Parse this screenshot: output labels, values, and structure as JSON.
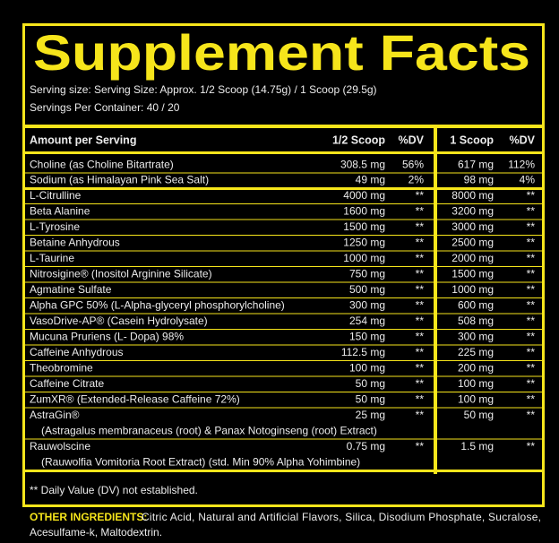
{
  "header": {
    "title": "Supplement Facts",
    "serving_size": "Serving size: Serving Size: Approx. 1/2 Scoop (14.75g) / 1 Scoop (29.5g)",
    "servings_per_container": "Servings Per Container: 40 / 20"
  },
  "table": {
    "columns": [
      "Amount per Serving",
      "1/2 Scoop",
      "%DV",
      "1 Scoop",
      "%DV"
    ],
    "groups": [
      [
        {
          "name": "Choline (as Choline Bitartrate)",
          "half": "308.5 mg",
          "half_dv": "56%",
          "full": "617 mg",
          "full_dv": "112%"
        },
        {
          "name": "Sodium (as Himalayan Pink Sea Salt)",
          "half": "49 mg",
          "half_dv": "2%",
          "full": "98 mg",
          "full_dv": "4%"
        }
      ],
      [
        {
          "name": "L-Citrulline",
          "half": "4000 mg",
          "half_dv": "**",
          "full": "8000 mg",
          "full_dv": "**"
        },
        {
          "name": "Beta Alanine",
          "half": "1600 mg",
          "half_dv": "**",
          "full": "3200 mg",
          "full_dv": "**"
        },
        {
          "name": "L-Tyrosine",
          "half": "1500 mg",
          "half_dv": "**",
          "full": "3000 mg",
          "full_dv": "**"
        },
        {
          "name": "Betaine Anhydrous",
          "half": "1250 mg",
          "half_dv": "**",
          "full": "2500 mg",
          "full_dv": "**"
        },
        {
          "name": "L-Taurine",
          "half": "1000 mg",
          "half_dv": "**",
          "full": "2000 mg",
          "full_dv": "**"
        },
        {
          "name": "Nitrosigine® (Inositol Arginine Silicate)",
          "half": "750 mg",
          "half_dv": "**",
          "full": "1500 mg",
          "full_dv": "**"
        },
        {
          "name": "Agmatine Sulfate",
          "half": "500 mg",
          "half_dv": "**",
          "full": "1000 mg",
          "full_dv": "**"
        },
        {
          "name": "Alpha GPC 50% (L-Alpha-glyceryl phosphorylcholine)",
          "half": "300 mg",
          "half_dv": "**",
          "full": "600 mg",
          "full_dv": "**"
        },
        {
          "name": "VasoDrive-AP® (Casein Hydrolysate)",
          "half": "254 mg",
          "half_dv": "**",
          "full": "508 mg",
          "full_dv": "**"
        },
        {
          "name": "Mucuna Pruriens (L- Dopa) 98%",
          "half": "150 mg",
          "half_dv": "**",
          "full": "300 mg",
          "full_dv": "**"
        },
        {
          "name": "Caffeine Anhydrous",
          "half": "112.5 mg",
          "half_dv": "**",
          "full": "225 mg",
          "full_dv": "**"
        },
        {
          "name": "Theobromine",
          "half": "100 mg",
          "half_dv": "**",
          "full": "200 mg",
          "full_dv": "**"
        },
        {
          "name": "Caffeine Citrate",
          "half": "50 mg",
          "half_dv": "**",
          "full": "100 mg",
          "full_dv": "**"
        },
        {
          "name": "ZumXR® (Extended-Release Caffeine 72%)",
          "half": "50 mg",
          "half_dv": "**",
          "full": "100 mg",
          "full_dv": "**"
        },
        {
          "name": "AstraGin®",
          "detail": "(Astragalus membranaceus (root) & Panax Notoginseng (root) Extract)",
          "half": "25 mg",
          "half_dv": "**",
          "full": "50 mg",
          "full_dv": "**"
        },
        {
          "name": "Rauwolscine",
          "detail": "(Rauwolfia Vomitoria Root Extract) (std. Min 90% Alpha Yohimbine)",
          "half": "0.75 mg",
          "half_dv": "**",
          "full": "1.5 mg",
          "full_dv": "**"
        }
      ]
    ],
    "footnote": "** Daily Value (DV) not established."
  },
  "footer": {
    "label": "OTHER INGREDIENTS:",
    "lines": [
      "Citric Acid, Natural and Artificial Flavors, Silica, Disodium Phosphate, Sucralose,",
      "Acesulfame-k, Maltodextrin."
    ]
  }
}
